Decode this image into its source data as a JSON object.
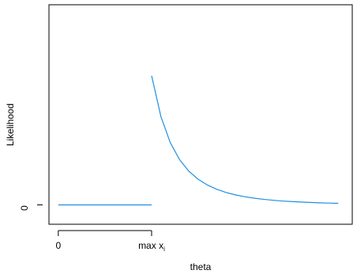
{
  "chart_data": {
    "type": "line",
    "xlabel": "theta",
    "ylabel": "Likelihood",
    "x_ticks": [
      {
        "x": 0,
        "label": "0"
      },
      {
        "x": 1,
        "label": "max x",
        "sub": "i"
      }
    ],
    "y_ticks": [
      {
        "y": 0,
        "label": "0"
      }
    ],
    "xlim": [
      -0.1,
      3.15
    ],
    "ylim": [
      -0.15,
      1.55
    ],
    "line_color": "#1f8fe3",
    "series": [
      {
        "segment": "flat",
        "x": [
          0,
          1
        ],
        "y": [
          0,
          0
        ]
      },
      {
        "segment": "decay",
        "x": [
          1.0,
          1.1,
          1.2,
          1.3,
          1.4,
          1.5,
          1.6,
          1.7,
          1.8,
          1.9,
          2.0,
          2.1,
          2.2,
          2.3,
          2.4,
          2.5,
          2.6,
          2.7,
          2.8,
          2.9,
          3.0
        ],
        "y": [
          1.0,
          0.683,
          0.482,
          0.35,
          0.26,
          0.198,
          0.153,
          0.12,
          0.096,
          0.077,
          0.063,
          0.052,
          0.043,
          0.036,
          0.03,
          0.026,
          0.022,
          0.019,
          0.016,
          0.014,
          0.012
        ]
      }
    ]
  }
}
